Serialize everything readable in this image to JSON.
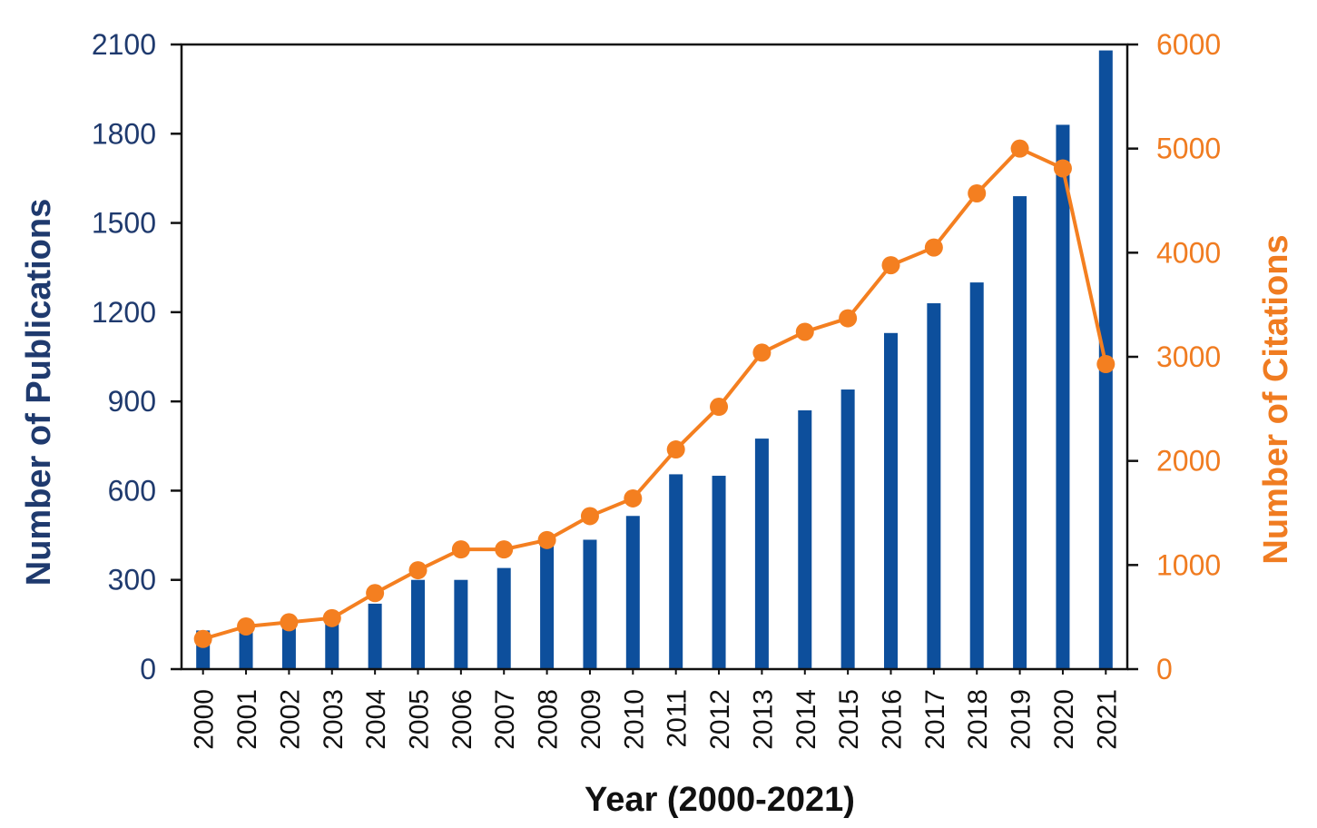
{
  "colors": {
    "bar": "#0d4f9c",
    "line": "#f47f20",
    "axis": "#111111",
    "left_text": "#1f3a6e",
    "right_text": "#f07c21"
  },
  "chart_data": {
    "type": "bar",
    "title": "",
    "xlabel": "Year (2000-2021)",
    "ylabel": "Number of Publications",
    "y2label": "Number of Citations",
    "categories": [
      "2000",
      "2001",
      "2002",
      "2003",
      "2004",
      "2005",
      "2006",
      "2007",
      "2008",
      "2009",
      "2010",
      "2011",
      "2012",
      "2013",
      "2014",
      "2015",
      "2016",
      "2017",
      "2018",
      "2019",
      "2020",
      "2021"
    ],
    "ylim": [
      0,
      2100
    ],
    "y2lim": [
      0,
      6000
    ],
    "yticks": [
      "0",
      "300",
      "600",
      "900",
      "1200",
      "1500",
      "1800",
      "2100"
    ],
    "y2ticks": [
      "0",
      "1000",
      "2000",
      "3000",
      "4000",
      "5000",
      "6000"
    ],
    "series": [
      {
        "name": "Number of Publications",
        "type": "bar",
        "axis": "left",
        "values": [
          130,
          140,
          150,
          160,
          220,
          300,
          300,
          340,
          420,
          435,
          515,
          655,
          650,
          775,
          870,
          940,
          1130,
          1230,
          1300,
          1590,
          1830,
          2080
        ]
      },
      {
        "name": "Number of Citations",
        "type": "line",
        "axis": "right",
        "values": [
          290,
          410,
          450,
          490,
          730,
          950,
          1150,
          1150,
          1240,
          1470,
          1640,
          2110,
          2520,
          3040,
          3240,
          3370,
          3880,
          4050,
          4570,
          5000,
          4810,
          2930
        ]
      }
    ]
  }
}
